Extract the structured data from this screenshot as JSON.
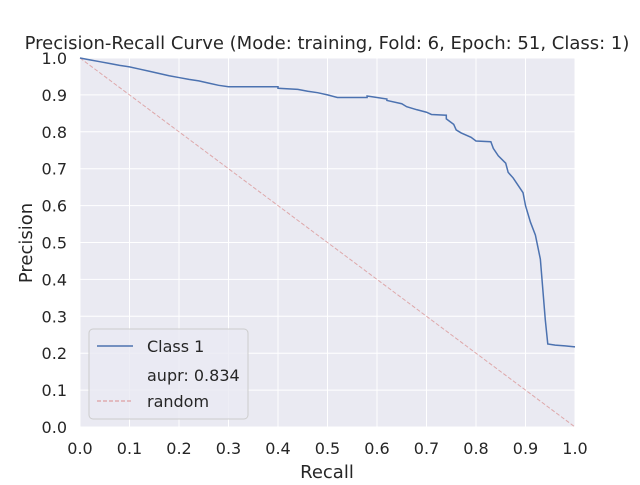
{
  "chart_data": {
    "type": "line",
    "title": "Precision-Recall Curve (Mode: training, Fold: 6, Epoch: 51, Class: 1)",
    "xlabel": "Recall",
    "ylabel": "Precision",
    "xlim": [
      0.0,
      1.0
    ],
    "ylim": [
      0.0,
      1.0
    ],
    "xticks": [
      "0.0",
      "0.1",
      "0.2",
      "0.3",
      "0.4",
      "0.5",
      "0.6",
      "0.7",
      "0.8",
      "0.9",
      "1.0"
    ],
    "yticks": [
      "0.0",
      "0.1",
      "0.2",
      "0.3",
      "0.4",
      "0.5",
      "0.6",
      "0.7",
      "0.8",
      "0.9",
      "1.0"
    ],
    "grid": true,
    "legend_position": "lower-left",
    "series": [
      {
        "name": "Class 1",
        "color": "#4c72b0",
        "style": "solid",
        "points": [
          [
            0.0,
            1.0
          ],
          [
            0.02,
            0.995
          ],
          [
            0.04,
            0.99
          ],
          [
            0.06,
            0.985
          ],
          [
            0.08,
            0.98
          ],
          [
            0.1,
            0.976
          ],
          [
            0.12,
            0.97
          ],
          [
            0.14,
            0.964
          ],
          [
            0.16,
            0.958
          ],
          [
            0.18,
            0.952
          ],
          [
            0.2,
            0.947
          ],
          [
            0.22,
            0.942
          ],
          [
            0.24,
            0.938
          ],
          [
            0.26,
            0.932
          ],
          [
            0.28,
            0.926
          ],
          [
            0.3,
            0.922
          ],
          [
            0.35,
            0.922
          ],
          [
            0.4,
            0.922
          ],
          [
            0.4,
            0.918
          ],
          [
            0.44,
            0.915
          ],
          [
            0.46,
            0.91
          ],
          [
            0.48,
            0.906
          ],
          [
            0.5,
            0.9
          ],
          [
            0.52,
            0.893
          ],
          [
            0.54,
            0.893
          ],
          [
            0.58,
            0.893
          ],
          [
            0.58,
            0.897
          ],
          [
            0.6,
            0.893
          ],
          [
            0.62,
            0.889
          ],
          [
            0.62,
            0.885
          ],
          [
            0.65,
            0.876
          ],
          [
            0.66,
            0.868
          ],
          [
            0.68,
            0.86
          ],
          [
            0.7,
            0.853
          ],
          [
            0.71,
            0.847
          ],
          [
            0.74,
            0.845
          ],
          [
            0.74,
            0.835
          ],
          [
            0.755,
            0.82
          ],
          [
            0.76,
            0.805
          ],
          [
            0.77,
            0.797
          ],
          [
            0.79,
            0.785
          ],
          [
            0.8,
            0.775
          ],
          [
            0.83,
            0.773
          ],
          [
            0.835,
            0.755
          ],
          [
            0.845,
            0.735
          ],
          [
            0.86,
            0.715
          ],
          [
            0.865,
            0.69
          ],
          [
            0.875,
            0.675
          ],
          [
            0.885,
            0.655
          ],
          [
            0.895,
            0.635
          ],
          [
            0.9,
            0.6
          ],
          [
            0.91,
            0.555
          ],
          [
            0.92,
            0.52
          ],
          [
            0.93,
            0.455
          ],
          [
            0.94,
            0.29
          ],
          [
            0.945,
            0.225
          ],
          [
            0.96,
            0.222
          ],
          [
            0.98,
            0.22
          ],
          [
            1.0,
            0.217
          ]
        ]
      },
      {
        "name": "random",
        "color": "#dd8452",
        "style": "dashed",
        "points": [
          [
            0.0,
            1.0
          ],
          [
            1.0,
            0.0
          ]
        ]
      }
    ],
    "legend": [
      {
        "label": "Class 1",
        "color": "#4c72b0",
        "style": "solid"
      },
      {
        "label": "aupr: 0.834",
        "color": "",
        "style": "none"
      },
      {
        "label": "random",
        "color": "#dd8452",
        "style": "dashed"
      }
    ]
  }
}
